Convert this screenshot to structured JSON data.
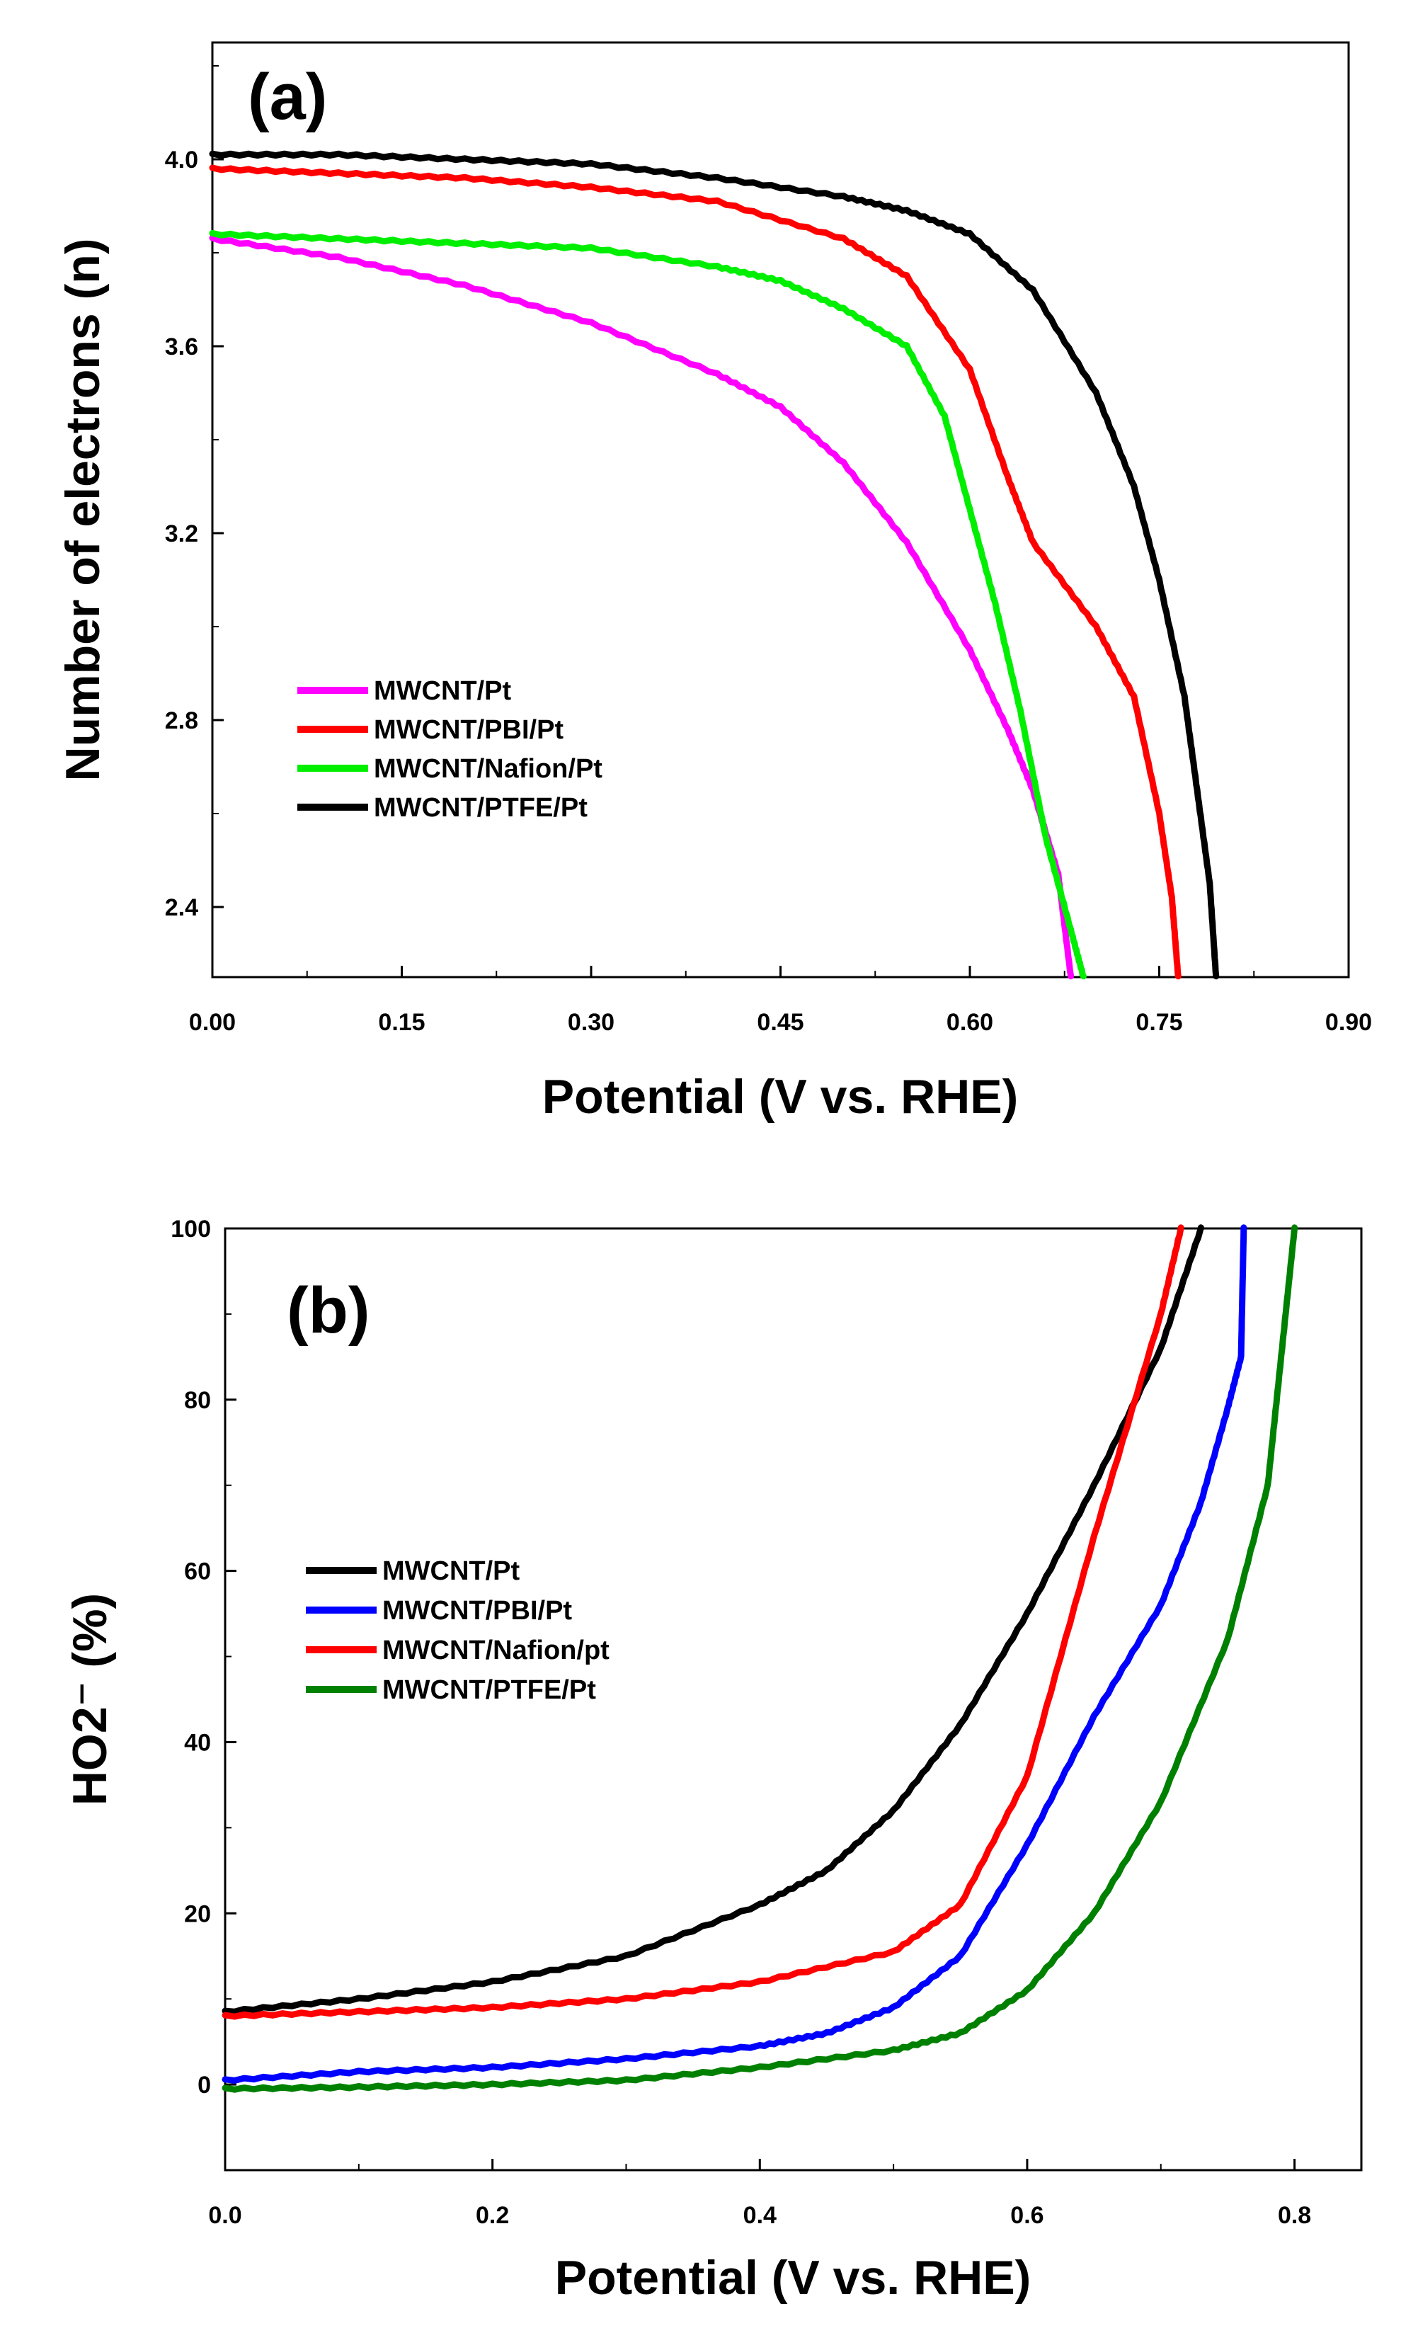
{
  "chart_data": [
    {
      "type": "line",
      "panel_label": "(a)",
      "xlabel": "Potential (V vs. RHE)",
      "ylabel": "Number of electrons (n)",
      "xlim": [
        0,
        0.9
      ],
      "ylim": [
        2.25,
        4.25
      ],
      "x_ticks": [
        "0.00",
        "0.15",
        "0.30",
        "0.45",
        "0.60",
        "0.75",
        "0.90"
      ],
      "y_ticks": [
        "2.4",
        "2.8",
        "3.2",
        "3.6",
        "4.0"
      ],
      "legend_position": "bottom-left",
      "series": [
        {
          "name": "MWCNT/Pt",
          "color": "#ff00ff",
          "points": [
            [
              0,
              3.83
            ],
            [
              0.1,
              3.79
            ],
            [
              0.2,
              3.73
            ],
            [
              0.3,
              3.65
            ],
            [
              0.4,
              3.54
            ],
            [
              0.45,
              3.47
            ],
            [
              0.5,
              3.35
            ],
            [
              0.55,
              3.18
            ],
            [
              0.6,
              2.95
            ],
            [
              0.63,
              2.78
            ],
            [
              0.65,
              2.65
            ],
            [
              0.67,
              2.47
            ],
            [
              0.68,
              2.25
            ]
          ]
        },
        {
          "name": "MWCNT/PBI/Pt",
          "color": "#ff0000",
          "points": [
            [
              0,
              3.98
            ],
            [
              0.1,
              3.97
            ],
            [
              0.2,
              3.96
            ],
            [
              0.3,
              3.94
            ],
            [
              0.4,
              3.91
            ],
            [
              0.5,
              3.83
            ],
            [
              0.55,
              3.75
            ],
            [
              0.6,
              3.55
            ],
            [
              0.63,
              3.32
            ],
            [
              0.65,
              3.18
            ],
            [
              0.7,
              3.0
            ],
            [
              0.73,
              2.85
            ],
            [
              0.75,
              2.6
            ],
            [
              0.76,
              2.42
            ],
            [
              0.765,
              2.25
            ]
          ]
        },
        {
          "name": "MWCNT/Nafion/Pt",
          "color": "#00ee00",
          "points": [
            [
              0,
              3.84
            ],
            [
              0.1,
              3.83
            ],
            [
              0.2,
              3.82
            ],
            [
              0.3,
              3.81
            ],
            [
              0.4,
              3.77
            ],
            [
              0.45,
              3.74
            ],
            [
              0.5,
              3.68
            ],
            [
              0.55,
              3.6
            ],
            [
              0.58,
              3.45
            ],
            [
              0.6,
              3.25
            ],
            [
              0.62,
              3.05
            ],
            [
              0.64,
              2.82
            ],
            [
              0.66,
              2.55
            ],
            [
              0.68,
              2.35
            ],
            [
              0.69,
              2.25
            ]
          ]
        },
        {
          "name": "MWCNT/PTFE/Pt",
          "color": "#000000",
          "points": [
            [
              0,
              4.01
            ],
            [
              0.1,
              4.01
            ],
            [
              0.2,
              4.0
            ],
            [
              0.3,
              3.99
            ],
            [
              0.4,
              3.96
            ],
            [
              0.5,
              3.92
            ],
            [
              0.55,
              3.89
            ],
            [
              0.6,
              3.84
            ],
            [
              0.65,
              3.72
            ],
            [
              0.7,
              3.5
            ],
            [
              0.73,
              3.3
            ],
            [
              0.75,
              3.1
            ],
            [
              0.77,
              2.85
            ],
            [
              0.78,
              2.65
            ],
            [
              0.79,
              2.45
            ],
            [
              0.795,
              2.25
            ]
          ]
        }
      ]
    },
    {
      "type": "line",
      "panel_label": "(b)",
      "xlabel": "Potential (V vs. RHE)",
      "ylabel": "HO2⁻ (%)",
      "xlim": [
        0,
        0.85
      ],
      "ylim": [
        -10,
        100
      ],
      "x_ticks": [
        "0.0",
        "0.2",
        "0.4",
        "0.6",
        "0.8"
      ],
      "y_ticks": [
        "0",
        "20",
        "40",
        "60",
        "80",
        "100"
      ],
      "legend_position": "center-left",
      "series": [
        {
          "name": "MWCNT/Pt",
          "color": "#000000",
          "points": [
            [
              0,
              8.5
            ],
            [
              0.1,
              10
            ],
            [
              0.2,
              12
            ],
            [
              0.3,
              15
            ],
            [
              0.4,
              21
            ],
            [
              0.45,
              25
            ],
            [
              0.5,
              32
            ],
            [
              0.55,
              42
            ],
            [
              0.6,
              55
            ],
            [
              0.65,
              70
            ],
            [
              0.7,
              86
            ],
            [
              0.73,
              100
            ]
          ]
        },
        {
          "name": "MWCNT/PBI/Pt",
          "color": "#0000ff",
          "points": [
            [
              0,
              0.5
            ],
            [
              0.1,
              1.5
            ],
            [
              0.2,
              2
            ],
            [
              0.3,
              3
            ],
            [
              0.4,
              4.5
            ],
            [
              0.45,
              6
            ],
            [
              0.5,
              9
            ],
            [
              0.55,
              15
            ],
            [
              0.6,
              28
            ],
            [
              0.65,
              43
            ],
            [
              0.7,
              56
            ],
            [
              0.73,
              68
            ],
            [
              0.75,
              79
            ],
            [
              0.76,
              85
            ],
            [
              0.762,
              100
            ]
          ]
        },
        {
          "name": "MWCNT/Nafion/pt",
          "color": "#ff0000",
          "points": [
            [
              0,
              8
            ],
            [
              0.1,
              8.5
            ],
            [
              0.2,
              9
            ],
            [
              0.3,
              10
            ],
            [
              0.4,
              12
            ],
            [
              0.5,
              15.5
            ],
            [
              0.55,
              21
            ],
            [
              0.6,
              36
            ],
            [
              0.65,
              64
            ],
            [
              0.7,
              90
            ],
            [
              0.715,
              100
            ]
          ]
        },
        {
          "name": "MWCNT/PTFE/Pt",
          "color": "#008000",
          "points": [
            [
              0,
              -0.5
            ],
            [
              0.1,
              -0.3
            ],
            [
              0.2,
              0
            ],
            [
              0.3,
              0.5
            ],
            [
              0.4,
              2
            ],
            [
              0.5,
              4
            ],
            [
              0.55,
              6
            ],
            [
              0.6,
              11
            ],
            [
              0.65,
              20
            ],
            [
              0.7,
              33
            ],
            [
              0.75,
              52
            ],
            [
              0.78,
              70
            ],
            [
              0.79,
              85
            ],
            [
              0.8,
              100
            ]
          ]
        }
      ]
    }
  ]
}
